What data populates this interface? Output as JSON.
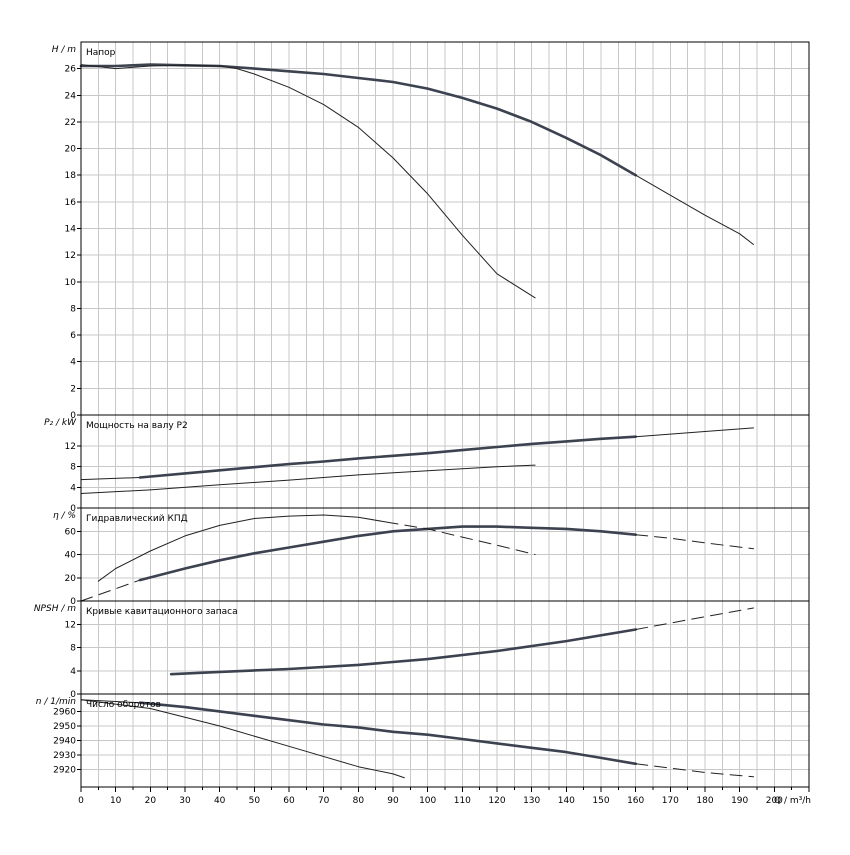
{
  "chart_data": [
    {
      "type": "line",
      "title": "Напор",
      "ylabel": "H / m",
      "xlim": [
        0,
        210
      ],
      "ylim": [
        0,
        28
      ],
      "yticks": [
        0,
        2,
        4,
        6,
        8,
        10,
        12,
        14,
        16,
        18,
        20,
        22,
        24,
        26
      ],
      "grid": true,
      "series": [
        {
          "style": "thick-solid",
          "x": [
            0,
            10,
            20,
            30,
            40,
            50,
            60,
            70,
            80,
            90,
            100,
            110,
            120,
            130,
            140,
            150,
            160
          ],
          "y": [
            26.2,
            26.2,
            26.3,
            26.25,
            26.2,
            26.0,
            25.8,
            25.6,
            25.3,
            25.0,
            24.5,
            23.8,
            23.0,
            22.0,
            20.8,
            19.5,
            18.0
          ]
        },
        {
          "style": "thin-solid",
          "x": [
            160,
            170,
            180,
            190,
            194
          ],
          "y": [
            18.0,
            16.5,
            15.0,
            13.6,
            12.8
          ]
        },
        {
          "style": "thin-solid",
          "x": [
            0,
            10,
            20,
            30,
            40,
            45,
            50,
            60,
            70,
            80,
            90,
            100,
            110,
            120,
            131
          ],
          "y": [
            26.3,
            26.0,
            26.2,
            26.25,
            26.2,
            26.0,
            25.6,
            24.6,
            23.3,
            21.6,
            19.3,
            16.6,
            13.5,
            10.6,
            8.8
          ]
        }
      ]
    },
    {
      "type": "line",
      "title": "Мощность на валу P2",
      "ylabel": "P₂ / kW",
      "xlim": [
        0,
        210
      ],
      "ylim": [
        0,
        18
      ],
      "yticks": [
        0,
        4,
        8,
        12
      ],
      "grid": true,
      "series": [
        {
          "style": "thin-solid",
          "x": [
            0,
            17
          ],
          "y": [
            5.5,
            5.9
          ]
        },
        {
          "style": "thick-solid",
          "x": [
            17,
            30,
            40,
            50,
            60,
            70,
            80,
            90,
            100,
            110,
            120,
            130,
            140,
            150,
            160
          ],
          "y": [
            5.9,
            6.7,
            7.3,
            7.9,
            8.5,
            9.0,
            9.6,
            10.1,
            10.6,
            11.2,
            11.8,
            12.4,
            12.9,
            13.4,
            13.8
          ]
        },
        {
          "style": "thin-solid",
          "x": [
            160,
            170,
            180,
            194
          ],
          "y": [
            13.8,
            14.3,
            14.8,
            15.5
          ]
        },
        {
          "style": "thin-solid",
          "x": [
            0,
            20,
            40,
            60,
            80,
            100,
            120,
            131
          ],
          "y": [
            2.8,
            3.5,
            4.5,
            5.4,
            6.4,
            7.2,
            8.0,
            8.3
          ]
        }
      ]
    },
    {
      "type": "line",
      "title": "Гидравлический КПД",
      "ylabel": "η / %",
      "xlim": [
        0,
        210
      ],
      "ylim": [
        0,
        80
      ],
      "yticks": [
        0,
        20,
        40,
        60
      ],
      "grid": true,
      "series": [
        {
          "style": "dashed",
          "x": [
            0,
            17
          ],
          "y": [
            0,
            18
          ]
        },
        {
          "style": "thick-solid",
          "x": [
            17,
            30,
            40,
            50,
            60,
            70,
            80,
            90,
            100,
            110,
            120,
            130,
            140,
            150,
            160
          ],
          "y": [
            18,
            28,
            35,
            41,
            46,
            51,
            56,
            60,
            62,
            64,
            64,
            63,
            62,
            60,
            57
          ]
        },
        {
          "style": "dashed",
          "x": [
            160,
            170,
            180,
            194
          ],
          "y": [
            57,
            54,
            50,
            45
          ]
        },
        {
          "style": "thin-solid",
          "x": [
            5,
            10,
            20,
            30,
            40,
            50,
            60,
            70,
            80,
            88
          ],
          "y": [
            17,
            28,
            43,
            56,
            65,
            71,
            73,
            74,
            72,
            68
          ]
        },
        {
          "style": "dashed",
          "x": [
            88,
            100,
            110,
            120,
            131
          ],
          "y": [
            68,
            62,
            55,
            48,
            40
          ]
        }
      ]
    },
    {
      "type": "line",
      "title": "Кривые кавитационного запаса",
      "ylabel": "NPSH / m",
      "xlim": [
        0,
        210
      ],
      "ylim": [
        0,
        16
      ],
      "yticks": [
        0,
        4,
        8,
        12
      ],
      "grid": true,
      "series": [
        {
          "style": "thick-solid",
          "x": [
            26,
            40,
            60,
            80,
            100,
            120,
            140,
            160
          ],
          "y": [
            3.4,
            3.8,
            4.3,
            5.0,
            6.0,
            7.4,
            9.1,
            11.1
          ]
        },
        {
          "style": "dashed",
          "x": [
            160,
            170,
            180,
            194
          ],
          "y": [
            11.1,
            12.2,
            13.3,
            14.8
          ]
        }
      ]
    },
    {
      "type": "line",
      "title": "Число оборотов",
      "ylabel": "n / 1/min",
      "xlabel": "Q / m³/h",
      "xlim": [
        0,
        210
      ],
      "ylim": [
        2908,
        2972
      ],
      "yticks": [
        2920,
        2930,
        2940,
        2950,
        2960
      ],
      "xticks": [
        0,
        10,
        20,
        30,
        40,
        50,
        60,
        70,
        80,
        90,
        100,
        110,
        120,
        130,
        140,
        150,
        160,
        170,
        180,
        190,
        200
      ],
      "grid": true,
      "series": [
        {
          "style": "thin-solid",
          "x": [
            0,
            17
          ],
          "y": [
            2968,
            2966
          ]
        },
        {
          "style": "thick-solid",
          "x": [
            17,
            30,
            40,
            50,
            60,
            70,
            80,
            90,
            100,
            110,
            120,
            130,
            140,
            150,
            160
          ],
          "y": [
            2966,
            2963,
            2960,
            2957,
            2954,
            2951,
            2949,
            2946,
            2944,
            2941,
            2938,
            2935,
            2932,
            2928,
            2924
          ]
        },
        {
          "style": "dashed",
          "x": [
            160,
            170,
            180,
            194
          ],
          "y": [
            2924,
            2921,
            2918,
            2915
          ]
        },
        {
          "style": "thin-solid",
          "x": [
            0,
            20,
            40,
            60,
            80,
            90
          ],
          "y": [
            2968,
            2962,
            2950,
            2936,
            2922,
            2917
          ]
        },
        {
          "style": "dashed",
          "x": [
            90,
            95
          ],
          "y": [
            2917,
            2913
          ]
        }
      ]
    }
  ]
}
